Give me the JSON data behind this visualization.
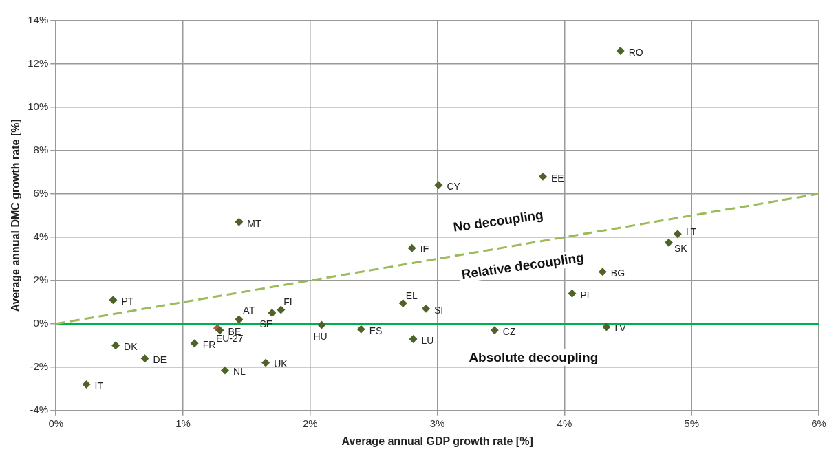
{
  "chart_data": {
    "type": "scatter",
    "xlabel": "Average annual GDP growth rate [%]",
    "ylabel": "Average annual DMC growth rate [%]",
    "xlim": [
      0,
      6
    ],
    "ylim": [
      -4,
      14
    ],
    "xticks": [
      {
        "value": 0,
        "label": "0%"
      },
      {
        "value": 1,
        "label": "1%"
      },
      {
        "value": 2,
        "label": "2%"
      },
      {
        "value": 3,
        "label": "3%"
      },
      {
        "value": 4,
        "label": "4%"
      },
      {
        "value": 5,
        "label": "5%"
      },
      {
        "value": 6,
        "label": "6%"
      }
    ],
    "yticks": [
      {
        "value": -4,
        "label": "-4%"
      },
      {
        "value": -2,
        "label": "-2%"
      },
      {
        "value": 0,
        "label": "0%"
      },
      {
        "value": 2,
        "label": "2%"
      },
      {
        "value": 4,
        "label": "4%"
      },
      {
        "value": 6,
        "label": "6%"
      },
      {
        "value": 8,
        "label": "8%"
      },
      {
        "value": 10,
        "label": "10%"
      },
      {
        "value": 12,
        "label": "12%"
      },
      {
        "value": 14,
        "label": "14%"
      }
    ],
    "grid": true,
    "legend": false,
    "marker": "diamond",
    "series": [
      {
        "type": "line",
        "color": "#9bbb59",
        "line_style": "dashed",
        "marker": "none",
        "x": [
          0,
          6
        ],
        "values": [
          0,
          6
        ]
      },
      {
        "name": "RO",
        "color": "#4f6228",
        "x": [
          4.44
        ],
        "values": [
          12.6
        ]
      },
      {
        "name": "EE",
        "color": "#4f6228",
        "x": [
          3.83
        ],
        "values": [
          6.8
        ]
      },
      {
        "name": "CY",
        "color": "#4f6228",
        "x": [
          3.01
        ],
        "values": [
          6.4
        ]
      },
      {
        "name": "MT",
        "color": "#4f6228",
        "x": [
          1.44
        ],
        "values": [
          4.7
        ]
      },
      {
        "name": "IE",
        "color": "#4f6228",
        "x": [
          2.8
        ],
        "values": [
          3.5
        ]
      },
      {
        "name": "LT",
        "color": "#4f6228",
        "x": [
          4.89
        ],
        "values": [
          4.15
        ]
      },
      {
        "name": "SK",
        "color": "#4f6228",
        "x": [
          4.82
        ],
        "values": [
          3.75
        ]
      },
      {
        "name": "BG",
        "color": "#4f6228",
        "x": [
          4.3
        ],
        "values": [
          2.4
        ]
      },
      {
        "name": "PL",
        "color": "#4f6228",
        "x": [
          4.06
        ],
        "values": [
          1.4
        ]
      },
      {
        "name": "PT",
        "color": "#4f6228",
        "x": [
          0.45
        ],
        "values": [
          1.1
        ]
      },
      {
        "name": "EL",
        "color": "#4f6228",
        "x": [
          2.73
        ],
        "values": [
          0.95
        ]
      },
      {
        "name": "SI",
        "color": "#4f6228",
        "x": [
          2.91
        ],
        "values": [
          0.7
        ]
      },
      {
        "name": "FI",
        "color": "#4f6228",
        "x": [
          1.77
        ],
        "values": [
          0.65
        ]
      },
      {
        "name": "SE",
        "color": "#4f6228",
        "x": [
          1.7
        ],
        "values": [
          0.5
        ]
      },
      {
        "name": "AT",
        "color": "#4f6228",
        "x": [
          1.44
        ],
        "values": [
          0.2
        ]
      },
      {
        "name": "HU",
        "color": "#4f6228",
        "x": [
          2.09
        ],
        "values": [
          -0.05
        ]
      },
      {
        "name": "BE",
        "color": "#4f6228",
        "x": [
          1.29
        ],
        "values": [
          -0.3
        ]
      },
      {
        "name": "EU-27",
        "color": "#c0504d",
        "x": [
          1.27
        ],
        "values": [
          -0.2
        ]
      },
      {
        "name": "ES",
        "color": "#4f6228",
        "x": [
          2.4
        ],
        "values": [
          -0.25
        ]
      },
      {
        "name": "CZ",
        "color": "#4f6228",
        "x": [
          3.45
        ],
        "values": [
          -0.3
        ]
      },
      {
        "name": "LV",
        "color": "#4f6228",
        "x": [
          4.33
        ],
        "values": [
          -0.15
        ]
      },
      {
        "name": "LU",
        "color": "#4f6228",
        "x": [
          2.81
        ],
        "values": [
          -0.7
        ]
      },
      {
        "name": "FR",
        "color": "#4f6228",
        "x": [
          1.09
        ],
        "values": [
          -0.9
        ]
      },
      {
        "name": "DK",
        "color": "#4f6228",
        "x": [
          0.47
        ],
        "values": [
          -1.0
        ]
      },
      {
        "name": "DE",
        "color": "#4f6228",
        "x": [
          0.7
        ],
        "values": [
          -1.6
        ]
      },
      {
        "name": "UK",
        "color": "#4f6228",
        "x": [
          1.65
        ],
        "values": [
          -1.8
        ]
      },
      {
        "name": "NL",
        "color": "#4f6228",
        "x": [
          1.33
        ],
        "values": [
          -2.15
        ]
      },
      {
        "name": "IT",
        "color": "#4f6228",
        "x": [
          0.24
        ],
        "values": [
          -2.8
        ]
      }
    ],
    "ref_lines": [
      {
        "axis": "y",
        "value": 0,
        "color": "#00b050"
      }
    ],
    "annotations": [
      "No decoupling",
      "Relative decoupling",
      "Absolute decoupling"
    ]
  }
}
